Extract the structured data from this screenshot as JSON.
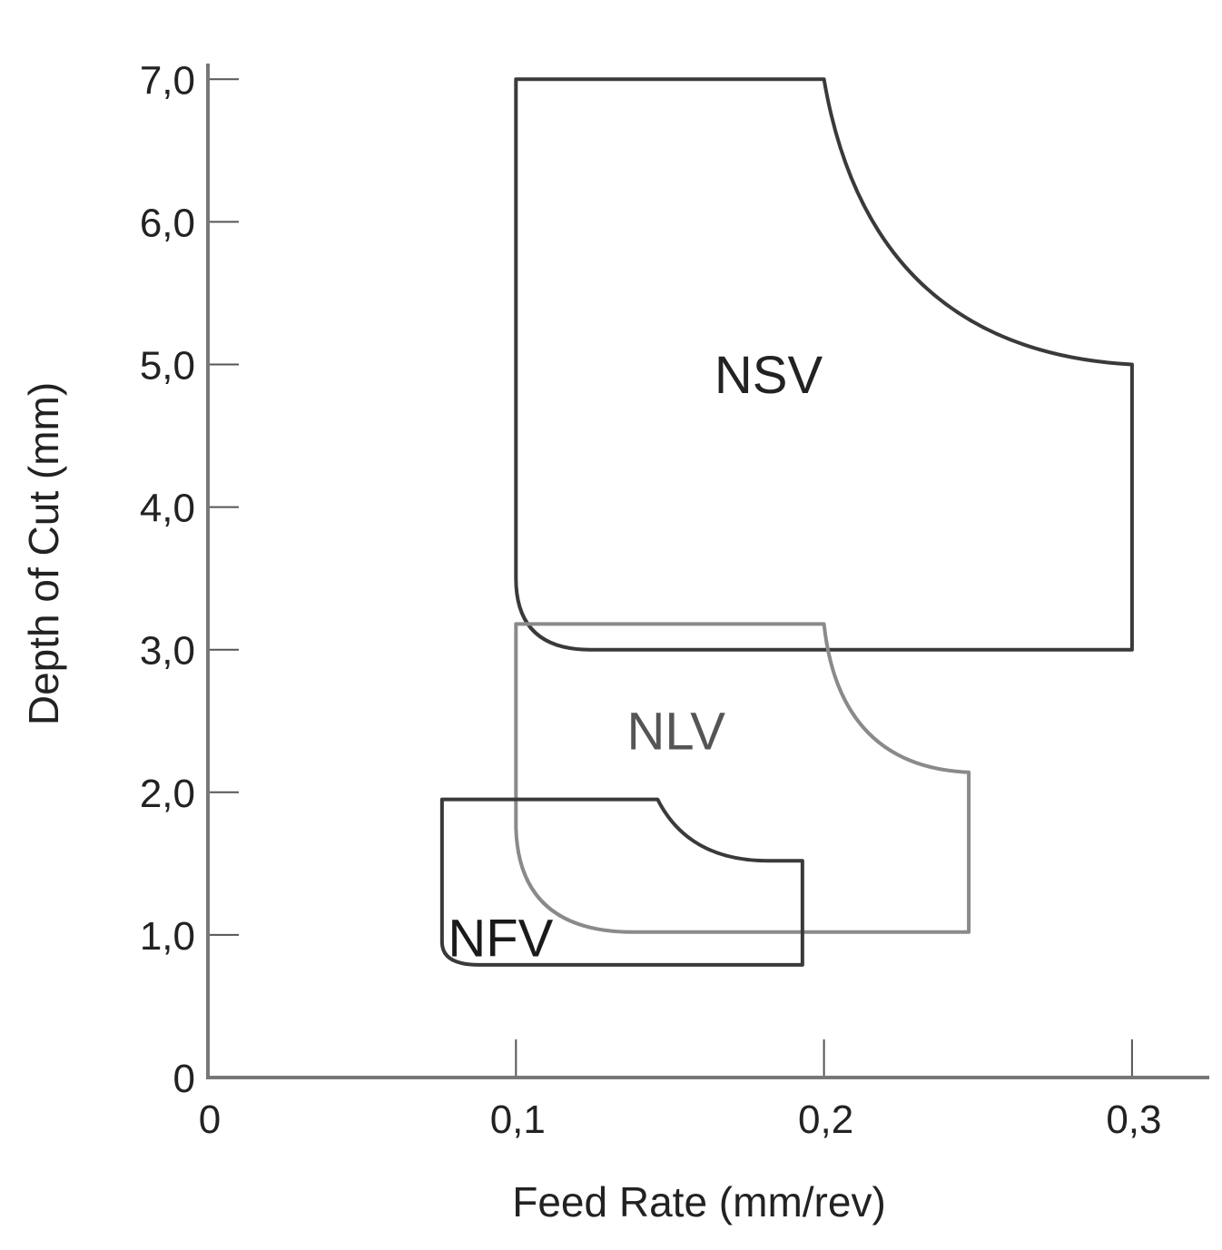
{
  "chart_data": {
    "type": "area",
    "xlabel": "Feed Rate (mm/rev)",
    "ylabel": "Depth of Cut (mm)",
    "xlim": [
      0,
      0.325
    ],
    "ylim": [
      0,
      7.0
    ],
    "x_ticks": [
      0,
      0.1,
      0.2,
      0.3
    ],
    "x_tick_labels": [
      "0",
      "0,1",
      "0,2",
      "0,3"
    ],
    "y_ticks": [
      0,
      1,
      2,
      3,
      4,
      5,
      6,
      7
    ],
    "y_tick_labels": [
      "0",
      "1,0",
      "2,0",
      "3,0",
      "4,0",
      "5,0",
      "6,0",
      "7,0"
    ],
    "grid": false,
    "regions": [
      {
        "name": "NSV",
        "color": "#3a3a3a",
        "label_color": "#222222",
        "label_at": [
          0.182,
          4.8
        ],
        "outline": [
          [
            "M",
            0.1,
            7.0
          ],
          [
            "L",
            0.2,
            7.0
          ],
          [
            "Q",
            0.215,
            5.1,
            0.3,
            5.0
          ],
          [
            "L",
            0.3,
            3.0
          ],
          [
            "L",
            0.124,
            3.0
          ],
          [
            "Q",
            0.1,
            3.0,
            0.1,
            3.5
          ],
          [
            "Z"
          ]
        ]
      },
      {
        "name": "NLV",
        "color": "#8a8a8a",
        "label_color": "#555555",
        "label_at": [
          0.152,
          2.3
        ],
        "outline": [
          [
            "M",
            0.1,
            3.18
          ],
          [
            "L",
            0.2,
            3.18
          ],
          [
            "Q",
            0.205,
            2.18,
            0.247,
            2.14
          ],
          [
            "L",
            0.247,
            1.02
          ],
          [
            "L",
            0.138,
            1.02
          ],
          [
            "Q",
            0.101,
            1.02,
            0.1,
            1.75
          ],
          [
            "Z"
          ]
        ]
      },
      {
        "name": "NFV",
        "color": "#3a3a3a",
        "label_color": "#1a1a1a",
        "label_at": [
          0.095,
          0.85
        ],
        "outline": [
          [
            "M",
            0.076,
            1.95
          ],
          [
            "L",
            0.146,
            1.95
          ],
          [
            "Q",
            0.156,
            1.52,
            0.182,
            1.52
          ],
          [
            "L",
            0.193,
            1.52
          ],
          [
            "L",
            0.193,
            0.79
          ],
          [
            "L",
            0.088,
            0.79
          ],
          [
            "Q",
            0.076,
            0.79,
            0.076,
            0.95
          ],
          [
            "Z"
          ]
        ]
      }
    ]
  }
}
